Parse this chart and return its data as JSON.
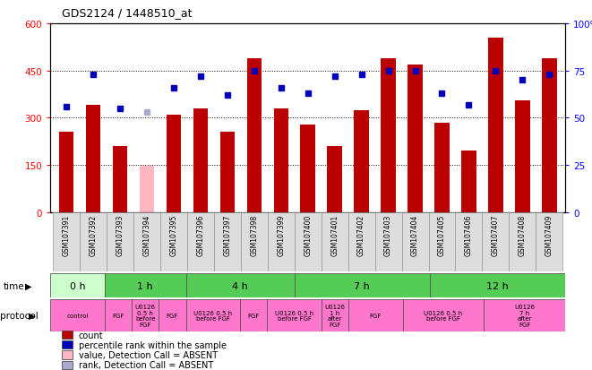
{
  "title": "GDS2124 / 1448510_at",
  "samples": [
    "GSM107391",
    "GSM107392",
    "GSM107393",
    "GSM107394",
    "GSM107395",
    "GSM107396",
    "GSM107397",
    "GSM107398",
    "GSM107399",
    "GSM107400",
    "GSM107401",
    "GSM107402",
    "GSM107403",
    "GSM107404",
    "GSM107405",
    "GSM107406",
    "GSM107407",
    "GSM107408",
    "GSM107409"
  ],
  "counts": [
    255,
    340,
    210,
    148,
    310,
    330,
    255,
    490,
    330,
    280,
    210,
    325,
    490,
    470,
    285,
    195,
    555,
    355,
    490
  ],
  "absent_count_idx": 3,
  "absent_count_val": 148,
  "percentile_ranks": [
    56,
    73,
    55,
    null,
    66,
    72,
    62,
    75,
    66,
    63,
    72,
    73,
    75,
    75,
    63,
    57,
    75,
    70,
    73
  ],
  "absent_rank_idx": 3,
  "absent_rank_val": 53,
  "ylim_left": [
    0,
    600
  ],
  "ylim_right": [
    0,
    100
  ],
  "yticks_left": [
    0,
    150,
    300,
    450,
    600
  ],
  "yticks_right": [
    0,
    25,
    50,
    75,
    100
  ],
  "bar_color": "#BB0000",
  "absent_bar_color": "#FFB6C1",
  "dot_color": "#0000BB",
  "absent_dot_color": "#AAAACC",
  "bg_color": "#FFFFFF",
  "label_bg_color": "#DDDDDD",
  "time_groups": [
    {
      "label": "0 h",
      "start": 0,
      "end": 2,
      "color": "#CCFFCC"
    },
    {
      "label": "1 h",
      "start": 2,
      "end": 5,
      "color": "#55CC55"
    },
    {
      "label": "4 h",
      "start": 5,
      "end": 9,
      "color": "#55CC55"
    },
    {
      "label": "7 h",
      "start": 9,
      "end": 14,
      "color": "#55CC55"
    },
    {
      "label": "12 h",
      "start": 14,
      "end": 19,
      "color": "#55CC55"
    }
  ],
  "protocol_groups": [
    {
      "label": "control",
      "start": 0,
      "end": 2
    },
    {
      "label": "FGF",
      "start": 2,
      "end": 3
    },
    {
      "label": "U0126\n0.5 h\nbefore\nFGF",
      "start": 3,
      "end": 4
    },
    {
      "label": "FGF",
      "start": 4,
      "end": 5
    },
    {
      "label": "U0126 0.5 h\nbefore FGF",
      "start": 5,
      "end": 7
    },
    {
      "label": "FGF",
      "start": 7,
      "end": 8
    },
    {
      "label": "U0126 0.5 h\nbefore FGF",
      "start": 8,
      "end": 10
    },
    {
      "label": "U0126\n1 h\nafter\nFGF",
      "start": 10,
      "end": 11
    },
    {
      "label": "FGF",
      "start": 11,
      "end": 13
    },
    {
      "label": "U0126 0.5 h\nbefore FGF",
      "start": 13,
      "end": 16
    },
    {
      "label": "U0126\n7 h\nafter\nFGF",
      "start": 16,
      "end": 19
    }
  ],
  "protocol_color": "#FF77CC",
  "legend_items": [
    {
      "color": "#BB0000",
      "label": "count"
    },
    {
      "color": "#0000BB",
      "label": "percentile rank within the sample"
    },
    {
      "color": "#FFB6C1",
      "label": "value, Detection Call = ABSENT"
    },
    {
      "color": "#AAAACC",
      "label": "rank, Detection Call = ABSENT"
    }
  ]
}
